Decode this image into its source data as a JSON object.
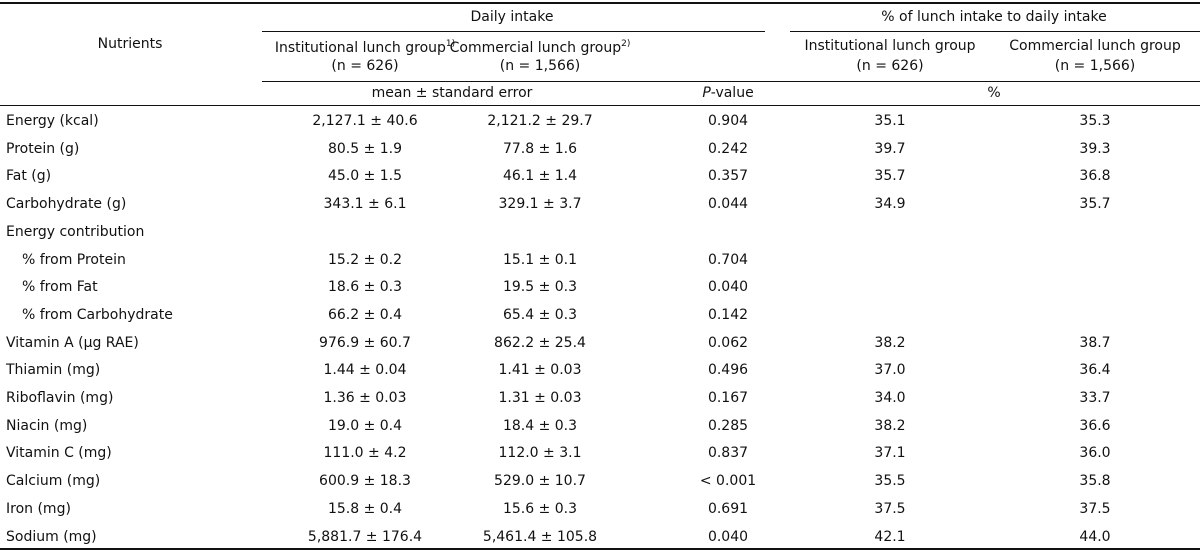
{
  "header": {
    "nutrients": "Nutrients",
    "daily_intake": "Daily intake",
    "pct_intake": "% of lunch intake to daily intake",
    "inst": "Institutional lunch group",
    "inst_note": "1)",
    "inst_n": "(n = 626)",
    "comm": "Commercial lunch group",
    "comm_note": "2)",
    "comm_n": "(n = 1,566)",
    "pct_inst": "Institutional lunch group",
    "pct_inst_n": "(n = 626)",
    "pct_comm": "Commercial lunch group",
    "pct_comm_n": "(n = 1,566)",
    "mean_se": "mean ± standard error",
    "p_italic": "P",
    "p_rest": "-value",
    "pct_unit": "%"
  },
  "table": {
    "rows": [
      [
        "Energy (kcal)",
        "2,127.1 ± 40.6",
        "2,121.2 ± 29.7",
        "0.904",
        "35.1",
        "35.3"
      ],
      [
        "Protein (g)",
        "80.5 ± 1.9",
        "77.8 ± 1.6",
        "0.242",
        "39.7",
        "39.3"
      ],
      [
        "Fat (g)",
        "45.0 ± 1.5",
        "46.1 ± 1.4",
        "0.357",
        "35.7",
        "36.8"
      ],
      [
        "Carbohydrate (g)",
        "343.1 ± 6.1",
        "329.1 ± 3.7",
        "0.044",
        "34.9",
        "35.7"
      ],
      [
        "Energy contribution",
        null,
        null,
        null,
        null,
        null
      ],
      [
        "% from Protein",
        "15.2 ± 0.2",
        "15.1 ± 0.1",
        "0.704",
        null,
        null
      ],
      [
        "% from Fat",
        "18.6 ± 0.3",
        "19.5 ± 0.3",
        "0.040",
        null,
        null
      ],
      [
        "% from Carbohydrate",
        "66.2 ± 0.4",
        "65.4 ± 0.3",
        "0.142",
        null,
        null
      ],
      [
        "Vitamin A (μg RAE)",
        "976.9 ± 60.7",
        "862.2 ± 25.4",
        "0.062",
        "38.2",
        "38.7"
      ],
      [
        "Thiamin (mg)",
        "1.44 ± 0.04",
        "1.41 ± 0.03",
        "0.496",
        "37.0",
        "36.4"
      ],
      [
        "Riboflavin (mg)",
        "1.36 ± 0.03",
        "1.31 ± 0.03",
        "0.167",
        "34.0",
        "33.7"
      ],
      [
        "Niacin (mg)",
        "19.0 ± 0.4",
        "18.4 ± 0.3",
        "0.285",
        "38.2",
        "36.6"
      ],
      [
        "Vitamin C (mg)",
        "111.0 ± 4.2",
        "112.0 ± 3.1",
        "0.837",
        "37.1",
        "36.0"
      ],
      [
        "Calcium (mg)",
        "600.9 ± 18.3",
        "529.0 ± 10.7",
        "< 0.001",
        "35.5",
        "35.8"
      ],
      [
        "Iron (mg)",
        "15.8 ± 0.4",
        "15.6 ± 0.3",
        "0.691",
        "37.5",
        "37.5"
      ],
      [
        "Sodium (mg)",
        "5,881.7 ± 176.4",
        "5,461.4 ± 105.8",
        "0.040",
        "42.1",
        "44.0"
      ]
    ]
  }
}
